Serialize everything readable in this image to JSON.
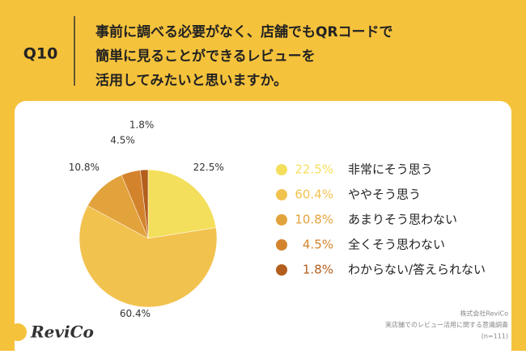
{
  "header": {
    "label": "Q10",
    "title_lines": [
      "事前に調べる必要がなく、店舗でもQRコードで",
      "簡単に見ることができるレビューを",
      "活用してみたいと思いますか。"
    ]
  },
  "chart_data": {
    "type": "pie",
    "categories": [
      "非常にそう思う",
      "ややそう思う",
      "あまりそう思わない",
      "全くそう思わない",
      "わからない/答えられない"
    ],
    "values": [
      22.5,
      60.4,
      10.8,
      4.5,
      1.8
    ],
    "value_labels": [
      "22.5%",
      "60.4%",
      "10.8%",
      "4.5%",
      "1.8%"
    ],
    "colors": [
      "#f4df5c",
      "#f2c24f",
      "#e3a33c",
      "#d4832d",
      "#b35e1d"
    ]
  },
  "footer": {
    "logo": "ReviCo",
    "source_lines": [
      "株式会社ReviCo",
      "実店舗でのレビュー活用に関する意識調査",
      "(n=111)"
    ]
  }
}
